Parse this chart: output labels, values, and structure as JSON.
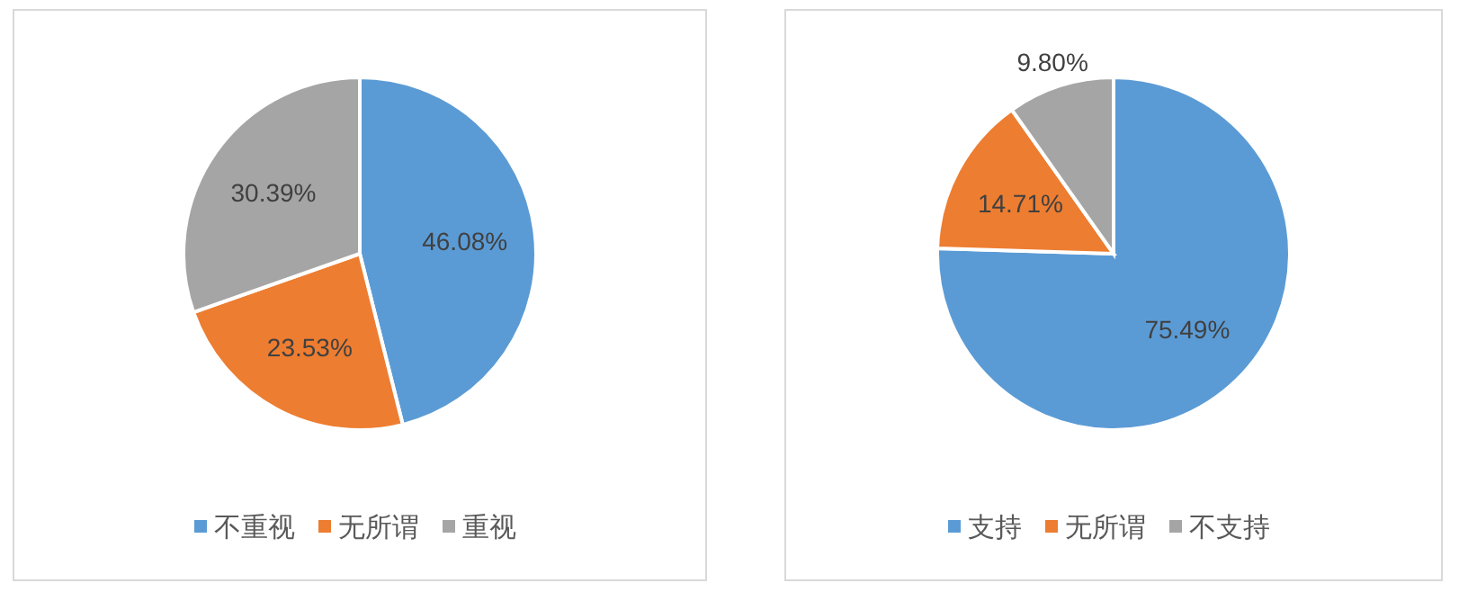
{
  "chart_data": [
    {
      "type": "pie",
      "categories": [
        "不重视",
        "无所谓",
        "重视"
      ],
      "values": [
        46.08,
        23.53,
        30.39
      ],
      "colors": [
        "#5b9bd5",
        "#ed7d31",
        "#a5a5a5"
      ],
      "value_labels": [
        "46.08%",
        "23.53%",
        "30.39%"
      ],
      "legend": "bottom"
    },
    {
      "type": "pie",
      "categories": [
        "支持",
        "无所谓",
        "不支持"
      ],
      "values": [
        75.49,
        14.71,
        9.8
      ],
      "colors": [
        "#5b9bd5",
        "#ed7d31",
        "#a5a5a5"
      ],
      "value_labels": [
        "75.49%",
        "14.71%",
        "9.80%"
      ],
      "legend": "bottom"
    }
  ]
}
